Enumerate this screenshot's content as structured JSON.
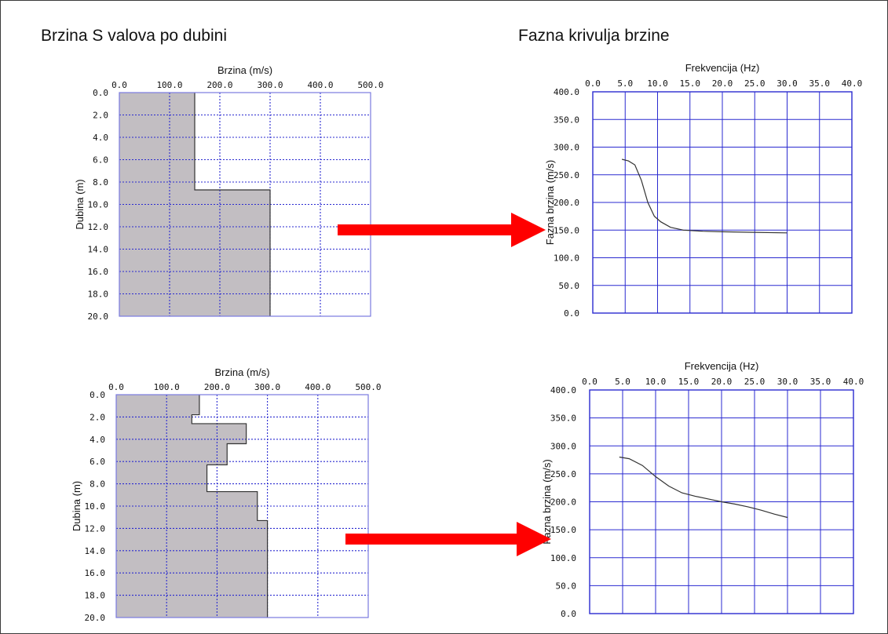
{
  "headings": {
    "left": "Brzina S valova po dubini",
    "right": "Fazna krivulja brzine"
  },
  "colors": {
    "profile_fill": "#c2bec2",
    "grid": "#2a2ad0",
    "arrow": "#ff0000",
    "curve": "#333333"
  },
  "chart_data": [
    {
      "type": "area",
      "chart": "top-left",
      "xlabel": "Brzina (m/s)",
      "ylabel": "Dubina (m)",
      "xlim": [
        0,
        500
      ],
      "ylim": [
        0,
        20
      ],
      "x_ticks": [
        "0.0",
        "100.0",
        "200.0",
        "300.0",
        "400.0",
        "500.0"
      ],
      "y_ticks": [
        "0.0",
        "2.0",
        "4.0",
        "6.0",
        "8.0",
        "10.0",
        "12.0",
        "14.0",
        "16.0",
        "18.0",
        "20.0"
      ],
      "grid": "dotted",
      "layers": [
        {
          "top": 0,
          "bottom": 8.7,
          "velocity": 150
        },
        {
          "top": 8.7,
          "bottom": 20,
          "velocity": 300
        }
      ]
    },
    {
      "type": "line",
      "chart": "top-right",
      "xlabel": "Frekvencija (Hz)",
      "ylabel": "Fazna brzina (m/s)",
      "xlim": [
        0,
        40
      ],
      "ylim": [
        0,
        400
      ],
      "x_ticks": [
        "0.0",
        "5.0",
        "10.0",
        "15.0",
        "20.0",
        "25.0",
        "30.0",
        "35.0",
        "40.0"
      ],
      "y_ticks": [
        "400.0",
        "350.0",
        "300.0",
        "250.0",
        "200.0",
        "150.0",
        "100.0",
        "50.0",
        "0.0"
      ],
      "grid": "solid",
      "x": [
        4.5,
        5.5,
        6.5,
        7.5,
        8.5,
        9.5,
        10.5,
        12.0,
        14.0,
        17.0,
        20.0,
        25.0,
        30.0
      ],
      "y": [
        278,
        275,
        268,
        240,
        200,
        175,
        165,
        155,
        150,
        148,
        147,
        146,
        145
      ]
    },
    {
      "type": "area",
      "chart": "bottom-left",
      "xlabel": "Brzina (m/s)",
      "ylabel": "Dubina (m)",
      "xlim": [
        0,
        500
      ],
      "ylim": [
        0,
        20
      ],
      "x_ticks": [
        "0.0",
        "100.0",
        "200.0",
        "300.0",
        "400.0",
        "500.0"
      ],
      "y_ticks": [
        "0.0",
        "2.0",
        "4.0",
        "6.0",
        "8.0",
        "10.0",
        "12.0",
        "14.0",
        "16.0",
        "18.0",
        "20.0"
      ],
      "grid": "dotted",
      "layers": [
        {
          "top": 0,
          "bottom": 1.8,
          "velocity": 165
        },
        {
          "top": 1.8,
          "bottom": 2.6,
          "velocity": 150
        },
        {
          "top": 2.6,
          "bottom": 4.4,
          "velocity": 258
        },
        {
          "top": 4.4,
          "bottom": 6.3,
          "velocity": 220
        },
        {
          "top": 6.3,
          "bottom": 8.7,
          "velocity": 180
        },
        {
          "top": 8.7,
          "bottom": 11.3,
          "velocity": 280
        },
        {
          "top": 11.3,
          "bottom": 20,
          "velocity": 300
        }
      ]
    },
    {
      "type": "line",
      "chart": "bottom-right",
      "xlabel": "Frekvencija (Hz)",
      "ylabel": "Fazna brzina (m/s)",
      "xlim": [
        0,
        40
      ],
      "ylim": [
        0,
        400
      ],
      "x_ticks": [
        "0.0",
        "5.0",
        "10.0",
        "15.0",
        "20.0",
        "25.0",
        "30.0",
        "35.0",
        "40.0"
      ],
      "y_ticks": [
        "400.0",
        "350.0",
        "300.0",
        "250.0",
        "200.0",
        "150.0",
        "100.0",
        "50.0",
        "0.0"
      ],
      "grid": "solid",
      "x": [
        4.5,
        6.0,
        8.0,
        10.0,
        12.0,
        14.0,
        16.0,
        18.0,
        20.0,
        22.0,
        24.0,
        26.0,
        28.0,
        30.0
      ],
      "y": [
        280,
        277,
        265,
        245,
        228,
        216,
        210,
        205,
        200,
        196,
        191,
        185,
        178,
        172
      ]
    }
  ]
}
